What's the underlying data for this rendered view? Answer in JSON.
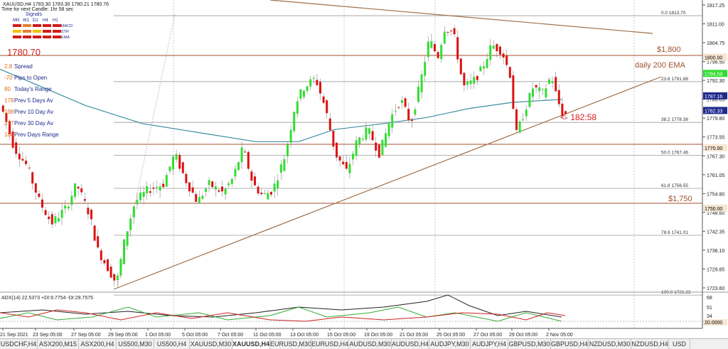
{
  "header": {
    "symbol_line": "XAUUSD,H4  1783.30 1783.30 1780.21 1780.76",
    "countdown": "Time for next Candle: 1hr 58 sec",
    "signals_label": "Signals",
    "tf_labels": [
      "MN",
      "W1",
      "D1",
      "H4",
      "H1"
    ],
    "signal_rows": [
      {
        "name": "MACD",
        "colors": [
          "#d11a1a",
          "#e87e2e",
          "#d11a1a",
          "#d11a1a",
          "#d11a1a"
        ]
      },
      {
        "name": "STR",
        "colors": [
          "#f2c200",
          "#e87e2e",
          "#f2c200",
          "#d11a1a",
          "#d11a1a"
        ]
      },
      {
        "name": "EMA",
        "colors": [
          "#d11a1a",
          "#d11a1a",
          "#d11a1a",
          "#d11a1a",
          "#d11a1a"
        ]
      }
    ]
  },
  "stats": {
    "price": "1780.70",
    "rows": [
      {
        "value": "2.8",
        "label": "Spread"
      },
      {
        "value": "-70",
        "label": "Pips to Open"
      },
      {
        "value": "80",
        "label": "Today's Range"
      },
      {
        "value": "178",
        "label": "Prev 5 Days Av"
      },
      {
        "value": "198",
        "label": "Prev 10 Day Av"
      },
      {
        "value": "217",
        "label": "Prev 30 Day Av"
      },
      {
        "value": "180",
        "label": "Prev Days Range"
      }
    ]
  },
  "annotations": {
    "level_1800": "$1,800",
    "level_1750": "$1,750",
    "ema_label": "daily 200 EMA",
    "countdown_marker": "<- 182:58"
  },
  "fib_levels": [
    {
      "pct": "0.0",
      "price": "1813.70"
    },
    {
      "pct": "23.6",
      "price": "1791.88"
    },
    {
      "pct": "38.2",
      "price": "1778.38"
    },
    {
      "pct": "50.0",
      "price": "1767.46"
    },
    {
      "pct": "61.8",
      "price": "1756.55"
    },
    {
      "pct": "78.6",
      "price": "1741.01"
    },
    {
      "pct": "100.0",
      "price": "1721.22"
    }
  ],
  "price_axis": {
    "ticks": [
      "1817.25",
      "1811.00",
      "1804.75",
      "1798.50",
      "1792.30",
      "1786.05",
      "1779.80",
      "1773.55",
      "1767.30",
      "1761.05",
      "1754.80",
      "1748.60",
      "1742.35",
      "1736.10",
      "1729.85",
      "1723.60"
    ],
    "highlights": [
      {
        "value": "1800.00",
        "bg": "#f7e7d2",
        "fg": "#000000"
      },
      {
        "value": "1794.59",
        "bg": "#33dd33",
        "fg": "#ffffff"
      },
      {
        "value": "1787.16",
        "bg": "#1f2a8c",
        "fg": "#ffffff"
      },
      {
        "value": "1782.33",
        "bg": "#1f2a8c",
        "fg": "#ffffff"
      },
      {
        "value": "1770.00",
        "bg": "#f7e7d2",
        "fg": "#000000"
      },
      {
        "value": "1750.00",
        "bg": "#f7e7d2",
        "fg": "#000000"
      }
    ]
  },
  "adx": {
    "label": "ADX(14) 22.5373 +DI:9.7754 -DI:29.7575",
    "ticks": [
      "68",
      "51",
      "34",
      "20"
    ],
    "highlight": "20.0000"
  },
  "time_axis": [
    "21 Sep 2021",
    "23 Sep 05:00",
    "27 Sep 05:00",
    "29 Sep 05:00",
    "1 Oct 05:00",
    "5 Oct 05:00",
    "7 Oct 05:00",
    "11 Oct 05:00",
    "13 Oct 05:00",
    "15 Oct 05:00",
    "19 Oct 05:00",
    "21 Oct 05:00",
    "25 Oct 05:00",
    "27 Oct 05:00",
    "29 Oct 05:00",
    "2 Nov 05:00"
  ],
  "tabs": [
    {
      "label": "USDCHF,H4",
      "active": false
    },
    {
      "label": "ASX200,M15",
      "active": false
    },
    {
      "label": "ASX200,H4",
      "active": false
    },
    {
      "label": "US500,M30",
      "active": false
    },
    {
      "label": "US500,H4",
      "active": false
    },
    {
      "label": "XAUUSD,M30",
      "active": false
    },
    {
      "label": "XAUUSD,H4",
      "active": true
    },
    {
      "label": "EURUSD,M30",
      "active": false
    },
    {
      "label": "EURUSD,H4",
      "active": false
    },
    {
      "label": "AUDUSD,M30",
      "active": false
    },
    {
      "label": "AUDUSD,H4",
      "active": false
    },
    {
      "label": "AUDJPY,M30",
      "active": false
    },
    {
      "label": "AUDJPY,H4",
      "active": false
    },
    {
      "label": "GBPUSD,M30",
      "active": false
    },
    {
      "label": "GBPUSD,H4",
      "active": false
    },
    {
      "label": "NZDUSD,M30",
      "active": false
    },
    {
      "label": "NZDUSD,H4",
      "active": false
    },
    {
      "label": "USD",
      "active": false
    }
  ],
  "colors": {
    "bull": "#33dd33",
    "bear": "#dd1111",
    "ema": "#3a8fa0",
    "trend": "#a0704a",
    "annotation": "#d42020",
    "level": "#a0522d"
  }
}
